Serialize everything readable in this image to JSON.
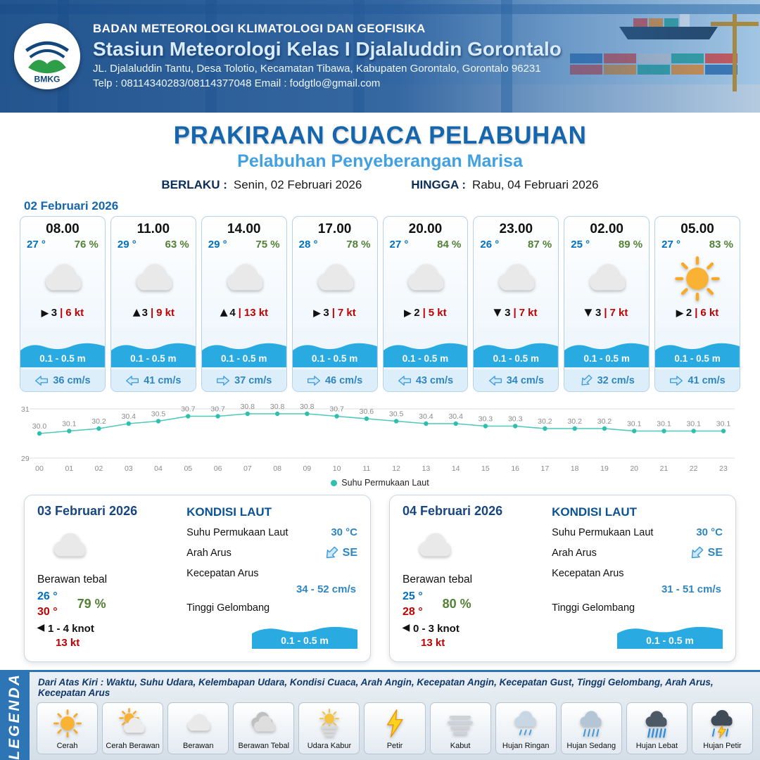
{
  "header": {
    "logo_label": "BMKG",
    "agency": "BADAN METEOROLOGI KLIMATOLOGI DAN GEOFISIKA",
    "station": "Stasiun Meteorologi Kelas I Djalaluddin Gorontalo",
    "address": "JL. Djalaluddin Tantu, Desa Tolotio, Kecamatan Tibawa, Kabupaten Gorontalo, Gorontalo 96231",
    "contact": "Telp : 08114340283/08114377048 Email : fodgtlo@gmail.com"
  },
  "title": {
    "main": "PRAKIRAAN CUACA PELABUHAN",
    "subtitle": "Pelabuhan Penyeberangan Marisa",
    "berlaku_label": "BERLAKU :",
    "berlaku_value": "Senin, 02 Februari 2026",
    "hingga_label": "HINGGA :",
    "hingga_value": "Rabu, 04 Februari 2026"
  },
  "forecast": {
    "date": "02 Februari 2026",
    "cards": [
      {
        "time": "08.00",
        "temp": "27 °",
        "humidity": "76 %",
        "icon": "berawan",
        "wind_dir": "right",
        "wind_speed": "3",
        "gust": "6 kt",
        "wave": "0.1 - 0.5 m",
        "current_dir": "left",
        "current": "36 cm/s"
      },
      {
        "time": "11.00",
        "temp": "29 °",
        "humidity": "63 %",
        "icon": "berawan",
        "wind_dir": "up",
        "wind_speed": "3",
        "gust": "9 kt",
        "wave": "0.1 - 0.5 m",
        "current_dir": "left",
        "current": "41 cm/s"
      },
      {
        "time": "14.00",
        "temp": "29 °",
        "humidity": "75 %",
        "icon": "berawan",
        "wind_dir": "up",
        "wind_speed": "4",
        "gust": "13 kt",
        "wave": "0.1 - 0.5 m",
        "current_dir": "right",
        "current": "37 cm/s"
      },
      {
        "time": "17.00",
        "temp": "28 °",
        "humidity": "78 %",
        "icon": "berawan",
        "wind_dir": "right",
        "wind_speed": "3",
        "gust": "7 kt",
        "wave": "0.1 - 0.5 m",
        "current_dir": "right",
        "current": "46 cm/s"
      },
      {
        "time": "20.00",
        "temp": "27 °",
        "humidity": "84 %",
        "icon": "berawan",
        "wind_dir": "right",
        "wind_speed": "2",
        "gust": "5 kt",
        "wave": "0.1 - 0.5 m",
        "current_dir": "left",
        "current": "43 cm/s"
      },
      {
        "time": "23.00",
        "temp": "26 °",
        "humidity": "87 %",
        "icon": "berawan",
        "wind_dir": "down",
        "wind_speed": "3",
        "gust": "7 kt",
        "wave": "0.1 - 0.5 m",
        "current_dir": "left",
        "current": "34 cm/s"
      },
      {
        "time": "02.00",
        "temp": "25 °",
        "humidity": "89 %",
        "icon": "berawan",
        "wind_dir": "down",
        "wind_speed": "3",
        "gust": "7 kt",
        "wave": "0.1 - 0.5 m",
        "current_dir": "down-left",
        "current": "32 cm/s"
      },
      {
        "time": "05.00",
        "temp": "27 °",
        "humidity": "83 %",
        "icon": "cerah",
        "wind_dir": "right",
        "wind_speed": "2",
        "gust": "6 kt",
        "wave": "0.1 - 0.5 m",
        "current_dir": "right",
        "current": "41 cm/s"
      }
    ]
  },
  "chart_data": {
    "type": "line",
    "series_name": "Suhu Permukaan Laut",
    "x": [
      "00",
      "01",
      "02",
      "03",
      "04",
      "05",
      "06",
      "07",
      "08",
      "09",
      "10",
      "11",
      "12",
      "13",
      "14",
      "15",
      "16",
      "17",
      "18",
      "19",
      "20",
      "21",
      "22",
      "23"
    ],
    "values": [
      30.0,
      30.1,
      30.2,
      30.4,
      30.5,
      30.7,
      30.7,
      30.8,
      30.8,
      30.8,
      30.7,
      30.6,
      30.5,
      30.4,
      30.4,
      30.3,
      30.3,
      30.2,
      30.2,
      30.2,
      30.1,
      30.1,
      30.1,
      30.1
    ],
    "ylim": [
      29,
      31
    ],
    "color": "#2fbfae",
    "legend_position": "bottom",
    "grid": "horizontal"
  },
  "day_cards": [
    {
      "date": "03 Februari 2026",
      "icon": "berawan",
      "condition": "Berawan tebal",
      "temp_min": "26 °",
      "temp_max": "30 °",
      "humidity": "79 %",
      "wind_dir": "left",
      "wind_range": "1 - 4 knot",
      "gust": "13 kt",
      "sea": {
        "title": "KONDISI LAUT",
        "sst_label": "Suhu Permukaan Laut",
        "sst_value": "30 °C",
        "current_dir_label": "Arah Arus",
        "current_dir_value": "SE",
        "current_dir": "down-left",
        "current_speed_label": "Kecepatan Arus",
        "current_speed_value": "34 - 52 cm/s",
        "wave_label": "Tinggi Gelombang",
        "wave_value": "0.1 - 0.5 m"
      }
    },
    {
      "date": "04 Februari 2026",
      "icon": "berawan",
      "condition": "Berawan tebal",
      "temp_min": "25 °",
      "temp_max": "28 °",
      "humidity": "80 %",
      "wind_dir": "left",
      "wind_range": "0 - 3 knot",
      "gust": "13 kt",
      "sea": {
        "title": "KONDISI LAUT",
        "sst_label": "Suhu Permukaan Laut",
        "sst_value": "30 °C",
        "current_dir_label": "Arah Arus",
        "current_dir_value": "SE",
        "current_dir": "down-left",
        "current_speed_label": "Kecepatan Arus",
        "current_speed_value": "31 - 51 cm/s",
        "wave_label": "Tinggi Gelombang",
        "wave_value": "0.1 - 0.5 m"
      }
    }
  ],
  "legend": {
    "side_label": "LEGENDA",
    "note": "Dari Atas Kiri : Waktu, Suhu Udara, Kelembapan Udara, Kondisi Cuaca, Arah Angin, Kecepatan Angin, Kecepatan Gust, Tinggi Gelombang, Arah Arus, Kecepatan Arus",
    "items": [
      {
        "label": "Cerah",
        "icon": "cerah"
      },
      {
        "label": "Cerah Berawan",
        "icon": "cerah-berawan"
      },
      {
        "label": "Berawan",
        "icon": "berawan"
      },
      {
        "label": "Berawan Tebal",
        "icon": "berawan-tebal"
      },
      {
        "label": "Udara Kabur",
        "icon": "udara-kabur"
      },
      {
        "label": "Petir",
        "icon": "petir"
      },
      {
        "label": "Kabut",
        "icon": "kabut"
      },
      {
        "label": "Hujan Ringan",
        "icon": "hujan-ringan"
      },
      {
        "label": "Hujan Sedang",
        "icon": "hujan-sedang"
      },
      {
        "label": "Hujan Lebat",
        "icon": "hujan-lebat"
      },
      {
        "label": "Hujan Petir",
        "icon": "hujan-petir"
      }
    ]
  },
  "colors": {
    "title_blue": "#1566ac",
    "subtitle_blue": "#41a0e0",
    "temp_blue": "#0070c0",
    "humidity_green": "#538135",
    "wind_red": "#c00000",
    "wave_blue": "#29abe2",
    "navy": "#0b2e59",
    "chart_teal": "#2fbfae",
    "legend_bar_blue": "#2e75b6"
  }
}
